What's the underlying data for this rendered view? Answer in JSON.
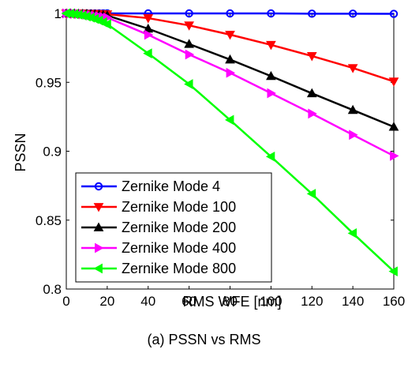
{
  "caption": "(a) PSSN vs RMS",
  "chart_data": {
    "type": "line",
    "xlabel": "RMS WFE [nm]",
    "ylabel": "PSSN",
    "xlim": [
      0,
      160
    ],
    "ylim": [
      0.8,
      1.0
    ],
    "xticks": [
      0,
      20,
      40,
      60,
      80,
      100,
      120,
      140,
      160
    ],
    "yticks": [
      0.8,
      0.85,
      0.9,
      0.95,
      1
    ],
    "grid": false,
    "legend_position": "bottom-left",
    "series": [
      {
        "name": "Zernike Mode 4",
        "color": "#0000ff",
        "marker": "circle",
        "x": [
          0,
          2,
          4,
          6,
          8,
          10,
          12,
          14,
          16,
          18,
          20,
          40,
          60,
          80,
          100,
          120,
          140,
          160
        ],
        "y": [
          1.0,
          1.0,
          1.0,
          1.0,
          1.0,
          1.0,
          1.0,
          1.0,
          1.0,
          1.0,
          1.0,
          1.0,
          1.0,
          1.0,
          1.0,
          0.9998,
          0.9998,
          0.9997
        ]
      },
      {
        "name": "Zernike Mode 100",
        "color": "#ff0000",
        "marker": "triangle-down",
        "x": [
          0,
          2,
          4,
          6,
          8,
          10,
          12,
          14,
          16,
          18,
          20,
          40,
          60,
          80,
          100,
          120,
          140,
          160
        ],
        "y": [
          1.0,
          1.0,
          1.0,
          0.9999,
          0.9999,
          0.9998,
          0.9998,
          0.9997,
          0.9996,
          0.9995,
          0.9994,
          0.9966,
          0.9913,
          0.9846,
          0.9772,
          0.9691,
          0.9604,
          0.9506
        ]
      },
      {
        "name": "Zernike Mode 200",
        "color": "#000000",
        "marker": "triangle-up",
        "x": [
          0,
          2,
          4,
          6,
          8,
          10,
          12,
          14,
          16,
          18,
          20,
          40,
          60,
          80,
          100,
          120,
          140,
          160
        ],
        "y": [
          1.0,
          1.0,
          0.9999,
          0.9998,
          0.9997,
          0.9996,
          0.9994,
          0.9992,
          0.999,
          0.9988,
          0.9985,
          0.9889,
          0.9778,
          0.9665,
          0.9545,
          0.942,
          0.9299,
          0.9177
        ]
      },
      {
        "name": "Zernike Mode 400",
        "color": "#ff00ff",
        "marker": "triangle-right",
        "x": [
          0,
          2,
          4,
          6,
          8,
          10,
          12,
          14,
          16,
          18,
          20,
          40,
          60,
          80,
          100,
          120,
          140,
          160
        ],
        "y": [
          1.0,
          0.9999,
          0.9998,
          0.9996,
          0.9994,
          0.9991,
          0.9988,
          0.9984,
          0.998,
          0.9975,
          0.997,
          0.9845,
          0.9702,
          0.9569,
          0.9421,
          0.9273,
          0.9119,
          0.8966
        ]
      },
      {
        "name": "Zernike Mode 800",
        "color": "#00ff00",
        "marker": "triangle-left",
        "x": [
          0,
          2,
          4,
          6,
          8,
          10,
          12,
          14,
          16,
          18,
          20,
          40,
          60,
          80,
          100,
          120,
          140,
          160
        ],
        "y": [
          1.0,
          0.9998,
          0.9995,
          0.9991,
          0.9985,
          0.9978,
          0.997,
          0.996,
          0.9949,
          0.9936,
          0.9922,
          0.971,
          0.9487,
          0.9227,
          0.8961,
          0.8691,
          0.8405,
          0.8128
        ]
      }
    ]
  }
}
